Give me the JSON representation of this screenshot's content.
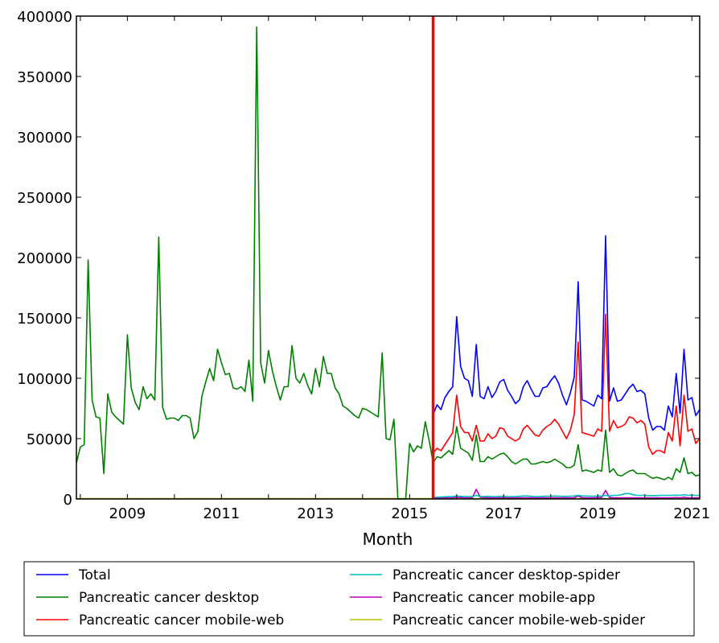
{
  "chart_data": {
    "type": "line",
    "title": "",
    "xlabel": "Month",
    "ylabel": "",
    "start_month": "2007-12",
    "end_month": "2021-03",
    "ylim": [
      0,
      400000
    ],
    "yticks": [
      0,
      50000,
      100000,
      150000,
      200000,
      250000,
      300000,
      350000,
      400000
    ],
    "xticks": [
      "2009",
      "2011",
      "2013",
      "2015",
      "2017",
      "2019",
      "2021"
    ],
    "vline": {
      "month": "2015-07",
      "color": "#ff0000"
    },
    "legend": {
      "placement": "bottom-outside",
      "columns": 2
    },
    "series": [
      {
        "name": "Total",
        "color": "#0000ff",
        "start": "2015-07",
        "values": [
          70000,
          78000,
          74000,
          84000,
          89000,
          93000,
          151000,
          110000,
          100000,
          98000,
          85000,
          128000,
          85000,
          83000,
          93000,
          84000,
          89000,
          97000,
          99000,
          90000,
          85000,
          79000,
          82000,
          93000,
          98000,
          91000,
          85000,
          85000,
          92000,
          93000,
          98000,
          102000,
          96000,
          86000,
          78000,
          88000,
          101000,
          180000,
          82000,
          81000,
          79000,
          77000,
          86000,
          83000,
          218000,
          81000,
          92000,
          81000,
          82000,
          87000,
          92000,
          95000,
          89000,
          90000,
          87000,
          67000,
          57000,
          60000,
          60000,
          57000,
          77000,
          68000,
          104000,
          71000,
          124000,
          82000,
          84000,
          69000,
          74000
        ]
      },
      {
        "name": "Pancreatic cancer desktop",
        "color": "#008000",
        "start": "2007-12",
        "values": [
          30000,
          43000,
          45000,
          198000,
          82000,
          68000,
          67000,
          21000,
          87000,
          72000,
          68000,
          65000,
          62000,
          136000,
          92000,
          80000,
          74000,
          93000,
          83000,
          87000,
          82000,
          217000,
          76000,
          66000,
          67000,
          67000,
          65000,
          69000,
          69000,
          67000,
          50000,
          56000,
          85000,
          97000,
          108000,
          98000,
          124000,
          113000,
          103000,
          104000,
          92000,
          91000,
          93000,
          89000,
          115000,
          81000,
          391000,
          113000,
          96000,
          123000,
          106000,
          93000,
          82000,
          93000,
          93000,
          127000,
          100000,
          96000,
          104000,
          94000,
          87000,
          108000,
          93000,
          118000,
          104000,
          104000,
          92000,
          87000,
          77000,
          75000,
          72000,
          69000,
          67000,
          75000,
          74000,
          72000,
          70000,
          68000,
          121000,
          50000,
          49000,
          66000,
          0,
          0,
          0,
          46000,
          39000,
          44000,
          42000,
          64000,
          48000,
          30000,
          35000,
          34000,
          37000,
          40000,
          37000,
          60000,
          42000,
          40000,
          38000,
          32000,
          53000,
          31000,
          31000,
          35000,
          33000,
          35000,
          37000,
          38000,
          35000,
          31000,
          29000,
          31000,
          33000,
          33000,
          29000,
          29000,
          30000,
          31000,
          30000,
          31000,
          33000,
          31000,
          29000,
          26000,
          26000,
          28000,
          45000,
          23000,
          24000,
          23000,
          22000,
          24000,
          23000,
          57000,
          22000,
          25000,
          20000,
          19000,
          21000,
          23000,
          24000,
          21000,
          21000,
          21000,
          19000,
          17000,
          18000,
          17000,
          16000,
          18000,
          16000,
          25000,
          22000,
          34000,
          21000,
          22000,
          19000,
          20000
        ]
      },
      {
        "name": "Pancreatic cancer mobile-web",
        "color": "#ff0000",
        "start": "2015-07",
        "values": [
          38000,
          42000,
          40000,
          45000,
          50000,
          55000,
          86000,
          60000,
          55000,
          55000,
          48000,
          61000,
          48000,
          48000,
          54000,
          50000,
          52000,
          59000,
          58000,
          52000,
          50000,
          48000,
          50000,
          58000,
          61000,
          57000,
          53000,
          52000,
          57000,
          60000,
          62000,
          66000,
          62000,
          56000,
          50000,
          57000,
          70000,
          130000,
          55000,
          54000,
          53000,
          52000,
          58000,
          56000,
          153000,
          56000,
          65000,
          59000,
          60000,
          62000,
          68000,
          67000,
          63000,
          65000,
          62000,
          43000,
          37000,
          40000,
          40000,
          38000,
          55000,
          48000,
          77000,
          44000,
          86000,
          56000,
          58000,
          46000,
          50000
        ]
      },
      {
        "name": "Pancreatic cancer desktop-spider",
        "color": "#00bfbf",
        "start": "2015-07",
        "values": [
          1500,
          1500,
          1600,
          1800,
          2000,
          2000,
          2500,
          2200,
          2000,
          2000,
          2000,
          3000,
          2000,
          2000,
          2200,
          2000,
          2000,
          2200,
          2200,
          2000,
          2000,
          2000,
          2200,
          2500,
          2500,
          2200,
          2000,
          2000,
          2200,
          2300,
          2300,
          2500,
          2300,
          2200,
          2200,
          2300,
          2500,
          3000,
          2500,
          2500,
          2300,
          2300,
          2500,
          2500,
          3000,
          2500,
          3000,
          3000,
          3500,
          4500,
          4500,
          3500,
          3000,
          3000,
          3000,
          2800,
          2800,
          2800,
          3000,
          3000,
          3000,
          3000,
          3200,
          3000,
          3500,
          3000,
          3200,
          3000,
          3000
        ]
      },
      {
        "name": "Pancreatic cancer mobile-app",
        "color": "#bf00bf",
        "start": "2015-07",
        "values": [
          800,
          800,
          900,
          900,
          1000,
          1000,
          1500,
          1200,
          1000,
          1000,
          1000,
          8000,
          1500,
          1200,
          1000,
          1000,
          1000,
          1000,
          1000,
          1000,
          1000,
          1000,
          1000,
          1000,
          1000,
          1000,
          1000,
          1000,
          1000,
          1000,
          1000,
          1000,
          1000,
          1000,
          1000,
          1000,
          1000,
          2500,
          1000,
          1000,
          1000,
          1000,
          1200,
          1200,
          7000,
          1200,
          1000,
          1000,
          1000,
          1000,
          1000,
          1000,
          1000,
          1000,
          1000,
          1000,
          1000,
          1000,
          1000,
          1000,
          1000,
          1000,
          1200,
          1000,
          1500,
          1000,
          1000,
          1000,
          1000
        ]
      },
      {
        "name": "Pancreatic cancer mobile-web-spider",
        "color": "#bfbf00",
        "start": "2007-12",
        "constant": 300
      }
    ]
  }
}
